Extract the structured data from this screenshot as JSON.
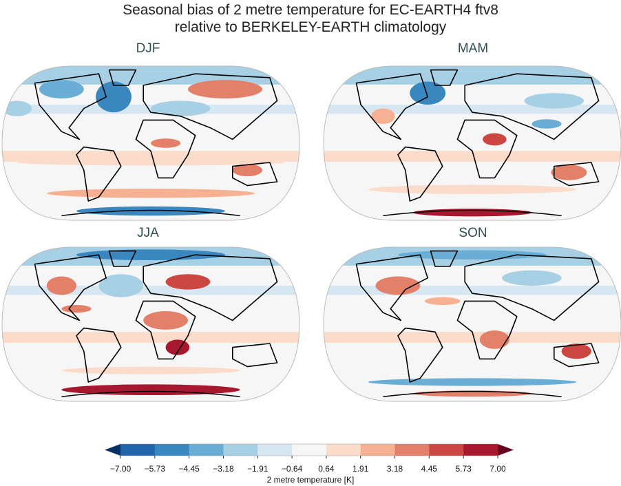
{
  "title": [
    "Seasonal bias of 2 metre temperature for EC-EARTH4 ftv8",
    "relative to BERKELEY-EARTH climatology"
  ],
  "panels": [
    {
      "label": "DJF"
    },
    {
      "label": "MAM"
    },
    {
      "label": "JJA"
    },
    {
      "label": "SON"
    }
  ],
  "projection": "Robinson",
  "colorbar": {
    "label": "2 metre temperature [K]",
    "ticks": [
      "−7.00",
      "−5.73",
      "−4.45",
      "−3.18",
      "−1.91",
      "−0.64",
      "0.64",
      "1.91",
      "3.18",
      "4.45",
      "5.73",
      "7.00"
    ],
    "colors": [
      "#2166ac",
      "#3a87bf",
      "#6aaed5",
      "#a8d0e5",
      "#d6e7f1",
      "#f6f6f6",
      "#fbdcca",
      "#f5b192",
      "#e3806a",
      "#cb4842",
      "#a7172d"
    ],
    "extend_low": "#053061",
    "extend_high": "#67001f"
  }
}
